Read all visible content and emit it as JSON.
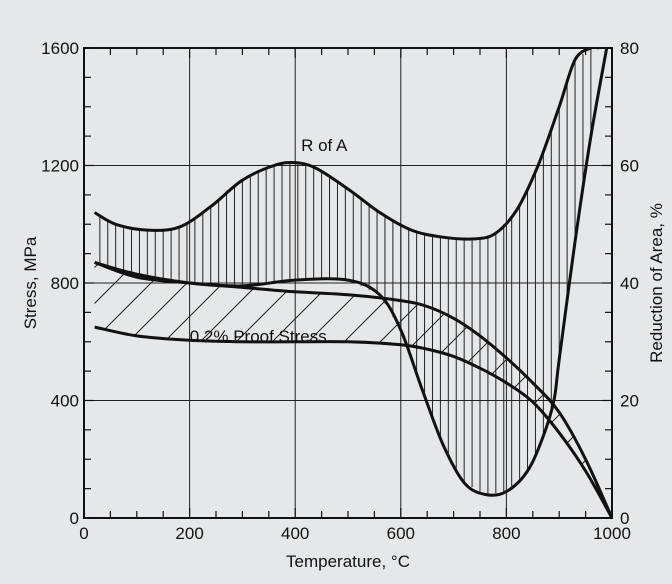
{
  "chart_data": {
    "type": "line",
    "xlabel": "Temperature, °C",
    "ylabel_left": "Stress, MPa",
    "ylabel_right": "Reduction of Area, %",
    "xlim": [
      0,
      1000
    ],
    "ylim_left": [
      0,
      1600
    ],
    "ylim_right": [
      0,
      80
    ],
    "x_ticks": [
      0,
      200,
      400,
      600,
      800,
      1000
    ],
    "y_ticks_left": [
      0,
      400,
      800,
      1200,
      1600
    ],
    "y_ticks_right": [
      0,
      20,
      40,
      60,
      80
    ],
    "grid": true,
    "annotations": [
      {
        "text": "R of A",
        "x": 455,
        "y": 1250
      },
      {
        "text": "0.2% Proof Stress",
        "x": 330,
        "y": 600
      }
    ],
    "bands": [
      {
        "name": "R of A",
        "axis": "right",
        "hatch": "vertical",
        "upper": {
          "x": [
            20,
            60,
            120,
            180,
            240,
            300,
            360,
            400,
            440,
            500,
            560,
            620,
            680,
            740,
            780,
            820,
            860,
            900,
            930,
            960,
            975
          ],
          "y": [
            52,
            50,
            49,
            49.5,
            53,
            57.5,
            60,
            60.5,
            59.5,
            56,
            52,
            49,
            47.8,
            47.5,
            48.5,
            52.5,
            60,
            70,
            78,
            80,
            80
          ]
        },
        "lower": {
          "x": [
            20,
            100,
            200,
            300,
            400,
            500,
            560,
            600,
            640,
            680,
            720,
            760,
            800,
            840,
            870,
            890,
            900,
            930,
            960,
            990
          ],
          "y": [
            43.5,
            41,
            40,
            39.5,
            40.5,
            40.5,
            38,
            32,
            22,
            12.5,
            6,
            4,
            4.5,
            8,
            14,
            20,
            27,
            47,
            65,
            80
          ]
        }
      },
      {
        "name": "0.2% Proof Stress",
        "axis": "left",
        "hatch": "diagonal",
        "upper": {
          "x": [
            20,
            100,
            200,
            300,
            400,
            500,
            600,
            650,
            700,
            750,
            800,
            850,
            900,
            950,
            1000
          ],
          "y": [
            870,
            830,
            800,
            785,
            770,
            760,
            740,
            720,
            680,
            620,
            545,
            460,
            360,
            200,
            0
          ]
        },
        "lower": {
          "x": [
            20,
            100,
            200,
            300,
            400,
            500,
            600,
            650,
            700,
            750,
            800,
            850,
            900,
            950,
            1000
          ],
          "y": [
            650,
            620,
            605,
            600,
            600,
            600,
            590,
            575,
            550,
            510,
            460,
            395,
            290,
            160,
            0
          ]
        }
      }
    ]
  }
}
